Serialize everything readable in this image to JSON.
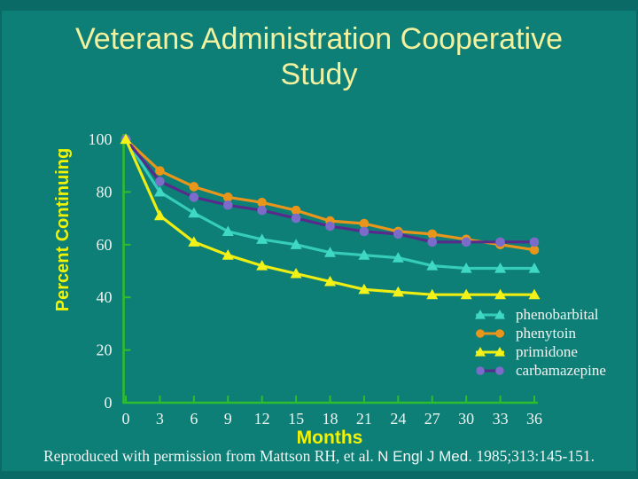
{
  "slide": {
    "title_line1": "Veterans Administration Cooperative",
    "title_line2": "Study"
  },
  "caption": {
    "part1": "Reproduced with permission from Mattson RH, et al. ",
    "part2": "N Engl J Med.",
    "part3": " 1985;313:145-151."
  },
  "chart_data": {
    "type": "line",
    "title": "Veterans Administration Cooperative Study",
    "xlabel": "Months",
    "ylabel": "Percent Continuing",
    "x": [
      0,
      3,
      6,
      9,
      12,
      15,
      18,
      21,
      24,
      27,
      30,
      33,
      36
    ],
    "xlim": [
      0,
      36
    ],
    "ylim": [
      0,
      100
    ],
    "yticks": [
      0,
      20,
      40,
      60,
      80,
      100
    ],
    "grid": false,
    "legend_position": "lower right",
    "axis_color": "#2cbe2c",
    "tick_label_color": "#eff4f1",
    "background_color": "#0d7f76",
    "draw_order": [
      "phenobarbital",
      "phenytoin",
      "carbamazepine",
      "primidone"
    ],
    "series": [
      {
        "name": "phenobarbital",
        "marker": "triangle",
        "line_color": "#35cdb9",
        "marker_color": "#3fd8c4",
        "values": [
          100,
          80,
          72,
          65,
          62,
          60,
          57,
          56,
          55,
          52,
          51,
          51,
          51
        ]
      },
      {
        "name": "phenytoin",
        "marker": "circle",
        "line_color": "#e8951c",
        "marker_color": "#e8951c",
        "values": [
          100,
          88,
          82,
          78,
          76,
          73,
          69,
          68,
          65,
          64,
          62,
          60,
          58
        ]
      },
      {
        "name": "primidone",
        "marker": "triangle",
        "line_color": "#eded14",
        "marker_color": "#f2f218",
        "values": [
          100,
          71,
          61,
          56,
          52,
          49,
          46,
          43,
          42,
          41,
          41,
          41,
          41
        ]
      },
      {
        "name": "carbamazepine",
        "marker": "circle",
        "line_color": "#582a8c",
        "marker_color": "#7c6cc9",
        "values": [
          100,
          84,
          78,
          75,
          73,
          70,
          67,
          65,
          64,
          61,
          61,
          61,
          61
        ]
      }
    ]
  }
}
